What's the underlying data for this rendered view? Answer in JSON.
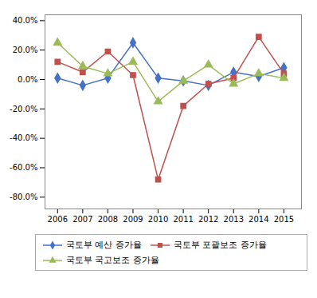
{
  "chart_data": {
    "type": "line",
    "x": [
      2006,
      2007,
      2008,
      2009,
      2010,
      2011,
      2012,
      2013,
      2014,
      2015
    ],
    "series": [
      {
        "name": "국토부 예산 증가율",
        "color": "#4472C4",
        "marker": "diamond",
        "values": [
          0.01,
          -0.04,
          0.01,
          0.25,
          0.01,
          -0.01,
          -0.04,
          0.05,
          0.02,
          0.08
        ]
      },
      {
        "name": "국토부 포괄보조 증가율",
        "color": "#C0504D",
        "marker": "square",
        "values": [
          0.12,
          0.05,
          0.19,
          0.03,
          -0.68,
          -0.18,
          -0.03,
          0.01,
          0.29,
          0.04
        ]
      },
      {
        "name": "국토부 국고보조 증가율",
        "color": "#9BBB59",
        "marker": "triangle",
        "values": [
          0.25,
          0.09,
          0.04,
          0.12,
          -0.15,
          -0.01,
          0.1,
          -0.03,
          0.04,
          0.01
        ]
      }
    ],
    "xlim": [
      2005.5,
      2015.7
    ],
    "xticks": [
      2006,
      2007,
      2008,
      2009,
      2010,
      2011,
      2012,
      2013,
      2014,
      2015
    ],
    "ylim": [
      -0.88,
      0.44
    ],
    "yticks": [
      {
        "value": -0.8,
        "label": "-80.0%"
      },
      {
        "value": -0.6,
        "label": "-60.0%"
      },
      {
        "value": -0.4,
        "label": "-40.0%"
      },
      {
        "value": -0.2,
        "label": "-20.0%"
      },
      {
        "value": 0.0,
        "label": "0.0%"
      },
      {
        "value": 0.2,
        "label": "20.0%"
      },
      {
        "value": 0.4,
        "label": "40.0%"
      }
    ],
    "grid": false,
    "legend": "bottom"
  }
}
